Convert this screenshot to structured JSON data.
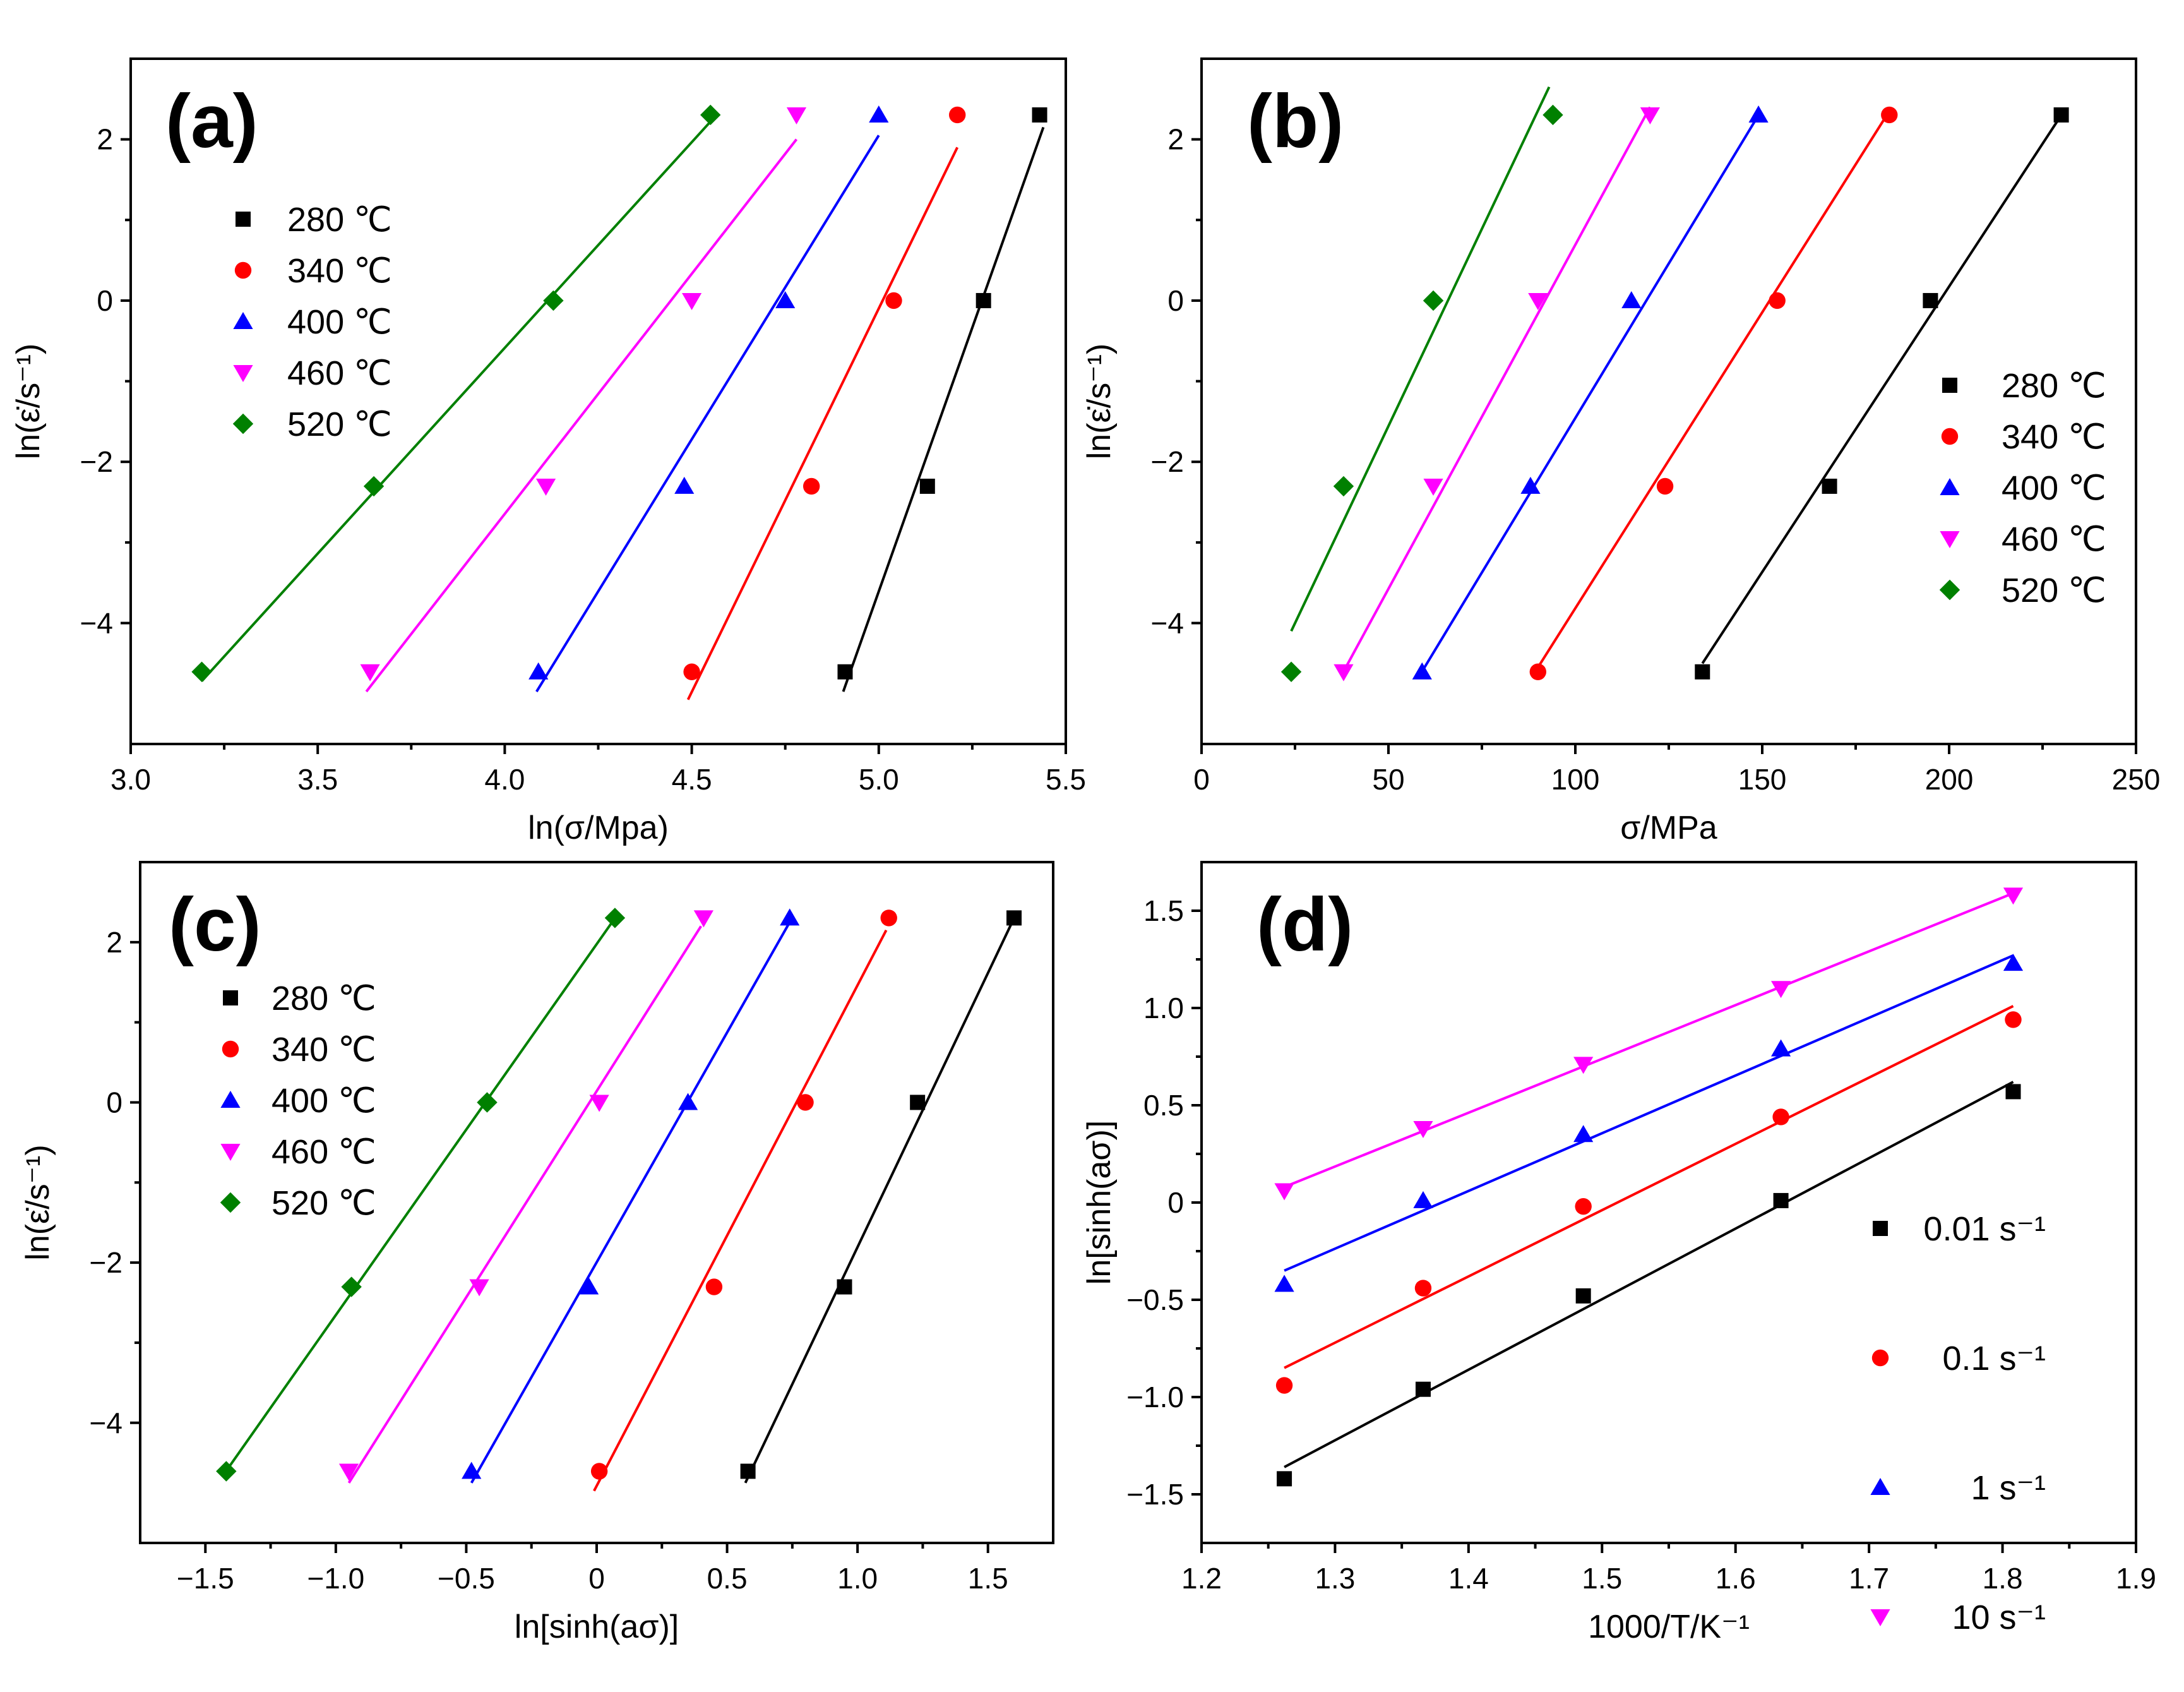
{
  "chart_data": [
    {
      "panel": "(a)",
      "type": "scatter",
      "xlabel": "ln(σ/Mpa)",
      "ylabel": "ln(ε̇/s⁻¹)",
      "xlim": [
        3.0,
        5.5
      ],
      "ylim": [
        -5.5,
        3.0
      ],
      "xticks": [
        3.0,
        3.5,
        4.0,
        4.5,
        5.0,
        5.5
      ],
      "xtick_labels": [
        "3.0",
        "3.5",
        "4.0",
        "4.5",
        "5.0",
        "5.5"
      ],
      "yticks": [
        -4,
        -2,
        0,
        2
      ],
      "ytick_labels": [
        "−4",
        "−2",
        "0",
        "2"
      ],
      "legend_position": "top-left",
      "series": [
        {
          "name": "280 ℃",
          "color": "#000000",
          "marker": "square",
          "x": [
            4.91,
            5.13,
            5.28,
            5.43
          ],
          "y": [
            -4.605,
            -2.303,
            0,
            2.303
          ],
          "fit": [
            [
              4.905,
              -4.85
            ],
            [
              5.44,
              2.15
            ]
          ]
        },
        {
          "name": "340 ℃",
          "color": "#ff0000",
          "marker": "circle",
          "x": [
            4.5,
            4.82,
            5.04,
            5.21
          ],
          "y": [
            -4.605,
            -2.303,
            0,
            2.303
          ],
          "fit": [
            [
              4.49,
              -4.95
            ],
            [
              5.21,
              1.9
            ]
          ]
        },
        {
          "name": "400 ℃",
          "color": "#0000ff",
          "marker": "triangle-up",
          "x": [
            4.09,
            4.48,
            4.75,
            5.0
          ],
          "y": [
            -4.605,
            -2.303,
            0,
            2.303
          ],
          "fit": [
            [
              4.085,
              -4.85
            ],
            [
              5.0,
              2.05
            ]
          ]
        },
        {
          "name": "460 ℃",
          "color": "#ff00ff",
          "marker": "triangle-down",
          "x": [
            3.64,
            4.11,
            4.5,
            4.78
          ],
          "y": [
            -4.605,
            -2.303,
            0,
            2.303
          ],
          "fit": [
            [
              3.63,
              -4.85
            ],
            [
              4.78,
              2.0
            ]
          ]
        },
        {
          "name": "520 ℃",
          "color": "#008000",
          "marker": "diamond",
          "x": [
            3.19,
            3.65,
            4.13,
            4.55
          ],
          "y": [
            -4.605,
            -2.303,
            0,
            2.303
          ],
          "fit": [
            [
              3.19,
              -4.72
            ],
            [
              4.55,
              2.22
            ]
          ]
        }
      ]
    },
    {
      "panel": "(b)",
      "type": "scatter",
      "xlabel": "σ/MPa",
      "ylabel": "ln(ε̇/s⁻¹)",
      "xlim": [
        0,
        250
      ],
      "ylim": [
        -5.5,
        3.0
      ],
      "xticks": [
        0,
        50,
        100,
        150,
        200,
        250
      ],
      "xtick_labels": [
        "0",
        "50",
        "100",
        "150",
        "200",
        "250"
      ],
      "yticks": [
        -4,
        -2,
        0,
        2
      ],
      "ytick_labels": [
        "−4",
        "−2",
        "0",
        "2"
      ],
      "legend_position": "center-right",
      "series": [
        {
          "name": "280 ℃",
          "color": "#000000",
          "marker": "square",
          "x": [
            134,
            168,
            195,
            230
          ],
          "y": [
            -4.605,
            -2.303,
            0,
            2.303
          ],
          "fit": [
            [
              134,
              -4.5
            ],
            [
              230,
              2.3
            ]
          ]
        },
        {
          "name": "340 ℃",
          "color": "#ff0000",
          "marker": "circle",
          "x": [
            90,
            124,
            154,
            184
          ],
          "y": [
            -4.605,
            -2.303,
            0,
            2.303
          ],
          "fit": [
            [
              90,
              -4.55
            ],
            [
              184,
              2.35
            ]
          ]
        },
        {
          "name": "400 ℃",
          "color": "#0000ff",
          "marker": "triangle-up",
          "x": [
            59,
            88,
            115,
            149
          ],
          "y": [
            -4.605,
            -2.303,
            0,
            2.303
          ],
          "fit": [
            [
              59,
              -4.6
            ],
            [
              149,
              2.3
            ]
          ]
        },
        {
          "name": "460 ℃",
          "color": "#ff00ff",
          "marker": "triangle-down",
          "x": [
            38,
            62,
            90,
            120
          ],
          "y": [
            -4.605,
            -2.303,
            0,
            2.303
          ],
          "fit": [
            [
              38,
              -4.6
            ],
            [
              120,
              2.4
            ]
          ]
        },
        {
          "name": "520 ℃",
          "color": "#008000",
          "marker": "diamond",
          "x": [
            24,
            38,
            62,
            94
          ],
          "y": [
            -4.605,
            -2.303,
            0,
            2.303
          ],
          "fit": [
            [
              24,
              -4.1
            ],
            [
              93,
              2.65
            ]
          ]
        }
      ]
    },
    {
      "panel": "(c)",
      "type": "scatter",
      "xlabel": "ln[sinh(aσ)]",
      "ylabel": "ln(ε̇/s⁻¹)",
      "xlim": [
        -1.75,
        1.75
      ],
      "ylim": [
        -5.5,
        3.0
      ],
      "xticks": [
        -1.5,
        -1.0,
        -0.5,
        0.0,
        0.5,
        1.0,
        1.5
      ],
      "xtick_labels": [
        "−1.5",
        "−1.0",
        "−0.5",
        "0",
        "0.5",
        "1.0",
        "1.5"
      ],
      "yticks": [
        -4,
        -2,
        0,
        2
      ],
      "ytick_labels": [
        "−4",
        "−2",
        "0",
        "2"
      ],
      "legend_position": "top-left",
      "series": [
        {
          "name": "280 ℃",
          "color": "#000000",
          "marker": "square",
          "x": [
            0.58,
            0.95,
            1.23,
            1.6
          ],
          "y": [
            -4.605,
            -2.303,
            0,
            2.303
          ],
          "fit": [
            [
              0.57,
              -4.75
            ],
            [
              1.6,
              2.3
            ]
          ]
        },
        {
          "name": "340 ℃",
          "color": "#ff0000",
          "marker": "circle",
          "x": [
            0.01,
            0.45,
            0.8,
            1.12
          ],
          "y": [
            -4.605,
            -2.303,
            0,
            2.303
          ],
          "fit": [
            [
              -0.01,
              -4.85
            ],
            [
              1.11,
              2.15
            ]
          ]
        },
        {
          "name": "400 ℃",
          "color": "#0000ff",
          "marker": "triangle-up",
          "x": [
            -0.48,
            -0.03,
            0.35,
            0.74
          ],
          "y": [
            -4.605,
            -2.303,
            0,
            2.303
          ],
          "fit": [
            [
              -0.48,
              -4.75
            ],
            [
              0.74,
              2.25
            ]
          ]
        },
        {
          "name": "460 ℃",
          "color": "#ff00ff",
          "marker": "triangle-down",
          "x": [
            -0.95,
            -0.45,
            0.01,
            0.41
          ],
          "y": [
            -4.605,
            -2.303,
            0,
            2.303
          ],
          "fit": [
            [
              -0.95,
              -4.75
            ],
            [
              0.4,
              2.2
            ]
          ]
        },
        {
          "name": "520 ℃",
          "color": "#008000",
          "marker": "diamond",
          "x": [
            -1.42,
            -0.94,
            -0.42,
            0.07
          ],
          "y": [
            -4.605,
            -2.303,
            0,
            2.303
          ],
          "fit": [
            [
              -1.42,
              -4.6
            ],
            [
              0.07,
              2.3
            ]
          ]
        }
      ]
    },
    {
      "panel": "(d)",
      "type": "scatter",
      "xlabel": "1000/T/K⁻¹",
      "ylabel": "ln[sinh(aσ)]",
      "xlim": [
        1.2,
        1.9
      ],
      "ylim": [
        -1.75,
        1.75
      ],
      "xticks": [
        1.2,
        1.3,
        1.4,
        1.5,
        1.6,
        1.7,
        1.8,
        1.9
      ],
      "xtick_labels": [
        "1.2",
        "1.3",
        "1.4",
        "1.5",
        "1.6",
        "1.7",
        "1.8",
        "1.9"
      ],
      "yticks": [
        -1.5,
        -1.0,
        -0.5,
        0.0,
        0.5,
        1.0,
        1.5
      ],
      "ytick_labels": [
        "−1.5",
        "−1.0",
        "−0.5",
        "0",
        "0.5",
        "1.0",
        "1.5"
      ],
      "legend_position": "bottom-right",
      "series": [
        {
          "name": "0.01 s⁻¹",
          "color": "#000000",
          "marker": "square",
          "x": [
            1.262,
            1.366,
            1.486,
            1.634,
            1.808
          ],
          "y": [
            -1.42,
            -0.96,
            -0.48,
            0.01,
            0.57
          ],
          "fit": [
            [
              1.262,
              -1.36
            ],
            [
              1.808,
              0.62
            ]
          ]
        },
        {
          "name": "0.1 s⁻¹",
          "color": "#ff0000",
          "marker": "circle",
          "x": [
            1.262,
            1.366,
            1.486,
            1.634,
            1.808
          ],
          "y": [
            -0.94,
            -0.44,
            -0.02,
            0.44,
            0.94
          ],
          "fit": [
            [
              1.262,
              -0.85
            ],
            [
              1.808,
              1.01
            ]
          ]
        },
        {
          "name": "1 s⁻¹",
          "color": "#0000ff",
          "marker": "triangle-up",
          "x": [
            1.262,
            1.366,
            1.486,
            1.634,
            1.808
          ],
          "y": [
            -0.42,
            0.01,
            0.35,
            0.79,
            1.23
          ],
          "fit": [
            [
              1.262,
              -0.35
            ],
            [
              1.808,
              1.27
            ]
          ]
        },
        {
          "name": "10 s⁻¹",
          "color": "#ff00ff",
          "marker": "triangle-down",
          "x": [
            1.262,
            1.366,
            1.486,
            1.634,
            1.808
          ],
          "y": [
            0.06,
            0.38,
            0.71,
            1.1,
            1.58
          ],
          "fit": [
            [
              1.262,
              0.08
            ],
            [
              1.808,
              1.59
            ]
          ]
        }
      ]
    }
  ]
}
